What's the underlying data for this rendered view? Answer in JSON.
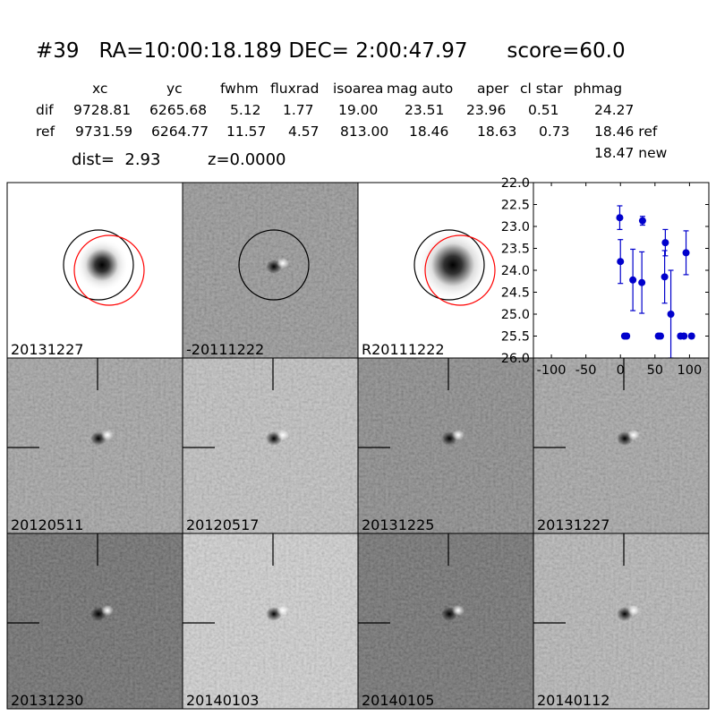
{
  "header": {
    "title": "#39   RA=10:00:18.189 DEC= 2:00:47.97      score=60.0",
    "columns": [
      "xc",
      "yc",
      "fwhm",
      "fluxrad",
      "isoarea",
      "mag auto",
      "aper",
      "cl star",
      "phmag"
    ],
    "rows": [
      [
        "dif",
        "9728.81",
        "6265.68",
        "5.12",
        "1.77",
        "19.00",
        "23.51",
        "23.96",
        "0.51",
        "24.27"
      ],
      [
        "ref",
        "9731.59",
        "6264.77",
        "11.57",
        "4.57",
        "813.00",
        "18.46",
        "18.63",
        "0.73",
        "18.46 ref"
      ]
    ],
    "extra": "18.47 new",
    "dist": "dist=  2.93",
    "z": "z=0.0000"
  },
  "stamps": [
    {
      "label": "20131227"
    },
    {
      "label": "-20111222"
    },
    {
      "label": "R20111222"
    },
    {
      "label": "20120511"
    },
    {
      "label": "20120517"
    },
    {
      "label": "20131225"
    },
    {
      "label": "20131227",
      "color": "#ff0000"
    },
    {
      "label": "20131230"
    },
    {
      "label": "20140103"
    },
    {
      "label": "20140105"
    },
    {
      "label": "20140112"
    }
  ],
  "chart_data": {
    "type": "errorbar",
    "x": [
      -1,
      0,
      6,
      9,
      18,
      31,
      32,
      55,
      58,
      64,
      65,
      73,
      87,
      92,
      95,
      103
    ],
    "series": [
      {
        "color": "#0000cc",
        "values": [
          22.8,
          23.8,
          25.5,
          25.5,
          24.22,
          24.28,
          22.87,
          25.5,
          25.5,
          24.15,
          23.37,
          25.0,
          25.5,
          25.5,
          23.6,
          25.5
        ],
        "errors": [
          0.27,
          0.5,
          0.05,
          0.05,
          0.7,
          0.7,
          0.1,
          0.05,
          0.05,
          0.6,
          0.3,
          1.0,
          0.05,
          0.05,
          0.5,
          0.05
        ]
      }
    ],
    "xlim": [
      -126,
      128
    ],
    "ylim": [
      26,
      22
    ],
    "xticks": [
      -100,
      -50,
      0,
      50,
      100
    ],
    "yticks": [
      {
        "value": 22,
        "label": "22.0"
      },
      {
        "value": 22.5,
        "label": "22.5"
      },
      {
        "value": 23,
        "label": "23.0"
      },
      {
        "value": 23.5,
        "label": "23.5"
      },
      {
        "value": 24,
        "label": "24.0"
      },
      {
        "value": 24.5,
        "label": "24.5"
      },
      {
        "value": 25,
        "label": "25.0"
      },
      {
        "value": 25.5,
        "label": "25.5"
      },
      {
        "value": 26,
        "label": "26.0"
      }
    ]
  }
}
